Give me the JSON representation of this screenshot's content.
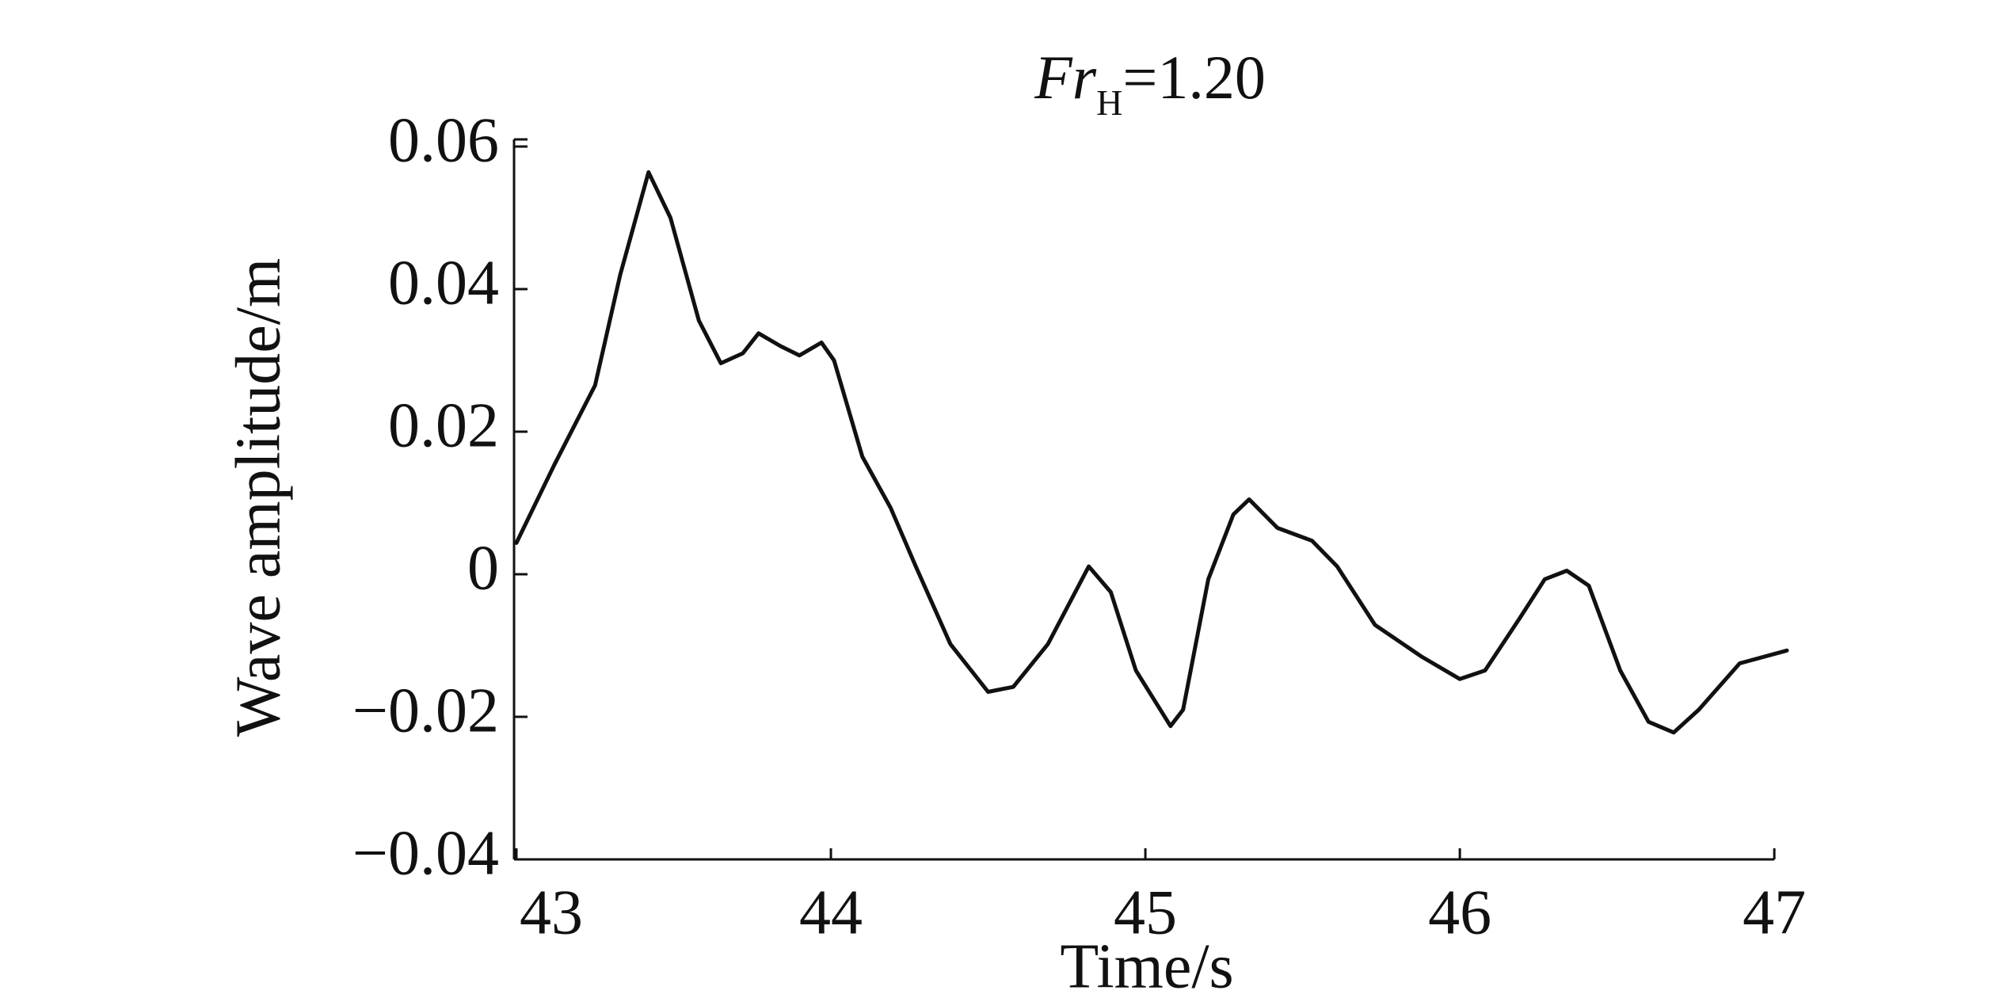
{
  "chart_data": {
    "type": "line",
    "title_parts": [
      "Fr",
      "H",
      "=1.20"
    ],
    "x_label": "Time/s",
    "y_label": "Wave amplitude/m",
    "xlim": [
      43,
      47.04
    ],
    "ylim": [
      -0.04,
      0.061
    ],
    "xticks": [
      43,
      44,
      45,
      46,
      47
    ],
    "yticks": [
      {
        "value": -0.04,
        "label": "−0.04"
      },
      {
        "value": -0.02,
        "label": "−0.02"
      },
      0,
      0.02,
      0.04,
      0.06
    ],
    "series": [
      {
        "color": "#111111",
        "x": [
          43.0,
          43.12,
          43.25,
          43.33,
          43.42,
          43.49,
          43.58,
          43.65,
          43.72,
          43.77,
          43.84,
          43.9,
          43.97,
          44.01,
          44.1,
          44.19,
          44.27,
          44.38,
          44.5,
          44.58,
          44.69,
          44.82,
          44.89,
          44.97,
          45.08,
          45.12,
          45.2,
          45.28,
          45.33,
          45.42,
          45.53,
          45.61,
          45.73,
          45.88,
          46.0,
          46.08,
          46.19,
          46.27,
          46.34,
          46.41,
          46.51,
          46.6,
          46.68,
          46.76,
          46.89,
          47.04
        ],
        "values": [
          0.0044,
          0.0153,
          0.0265,
          0.042,
          0.0564,
          0.05,
          0.0356,
          0.0296,
          0.031,
          0.0338,
          0.032,
          0.0307,
          0.0325,
          0.03,
          0.0165,
          0.0093,
          0.0011,
          -0.0098,
          -0.0165,
          -0.0158,
          -0.0098,
          0.0011,
          -0.0025,
          -0.0135,
          -0.0213,
          -0.019,
          -0.0007,
          0.0084,
          0.0105,
          0.0065,
          0.0047,
          0.0011,
          -0.0071,
          -0.0116,
          -0.0147,
          -0.0135,
          -0.0062,
          -0.0007,
          0.0005,
          -0.0016,
          -0.0135,
          -0.0207,
          -0.0222,
          -0.019,
          -0.0125,
          -0.0107
        ]
      }
    ]
  }
}
